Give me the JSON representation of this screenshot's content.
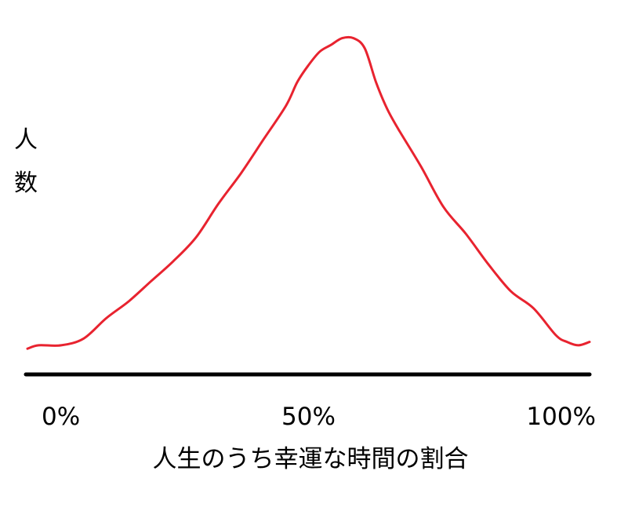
{
  "chart_data": {
    "type": "line",
    "title": "",
    "xlabel": "人生のうち幸運な時間の割合",
    "ylabel": "人数",
    "ylabel_chars": [
      "人",
      "数"
    ],
    "x_ticks": [
      {
        "value": 0,
        "label": "0%"
      },
      {
        "value": 50,
        "label": "50%"
      },
      {
        "value": 100,
        "label": "100%"
      }
    ],
    "xlim": [
      0,
      100
    ],
    "ylim": [
      0,
      100
    ],
    "y_ticks_shown": false,
    "grid": false,
    "legend": "none",
    "series": [
      {
        "color": "#e8232f",
        "x": [
          0,
          2,
          6,
          10,
          14,
          18,
          22,
          26,
          30,
          34,
          38,
          42,
          46,
          48,
          50,
          52,
          54,
          56,
          58,
          60,
          62,
          64,
          66,
          70,
          74,
          78,
          82,
          86,
          90,
          94,
          96,
          98,
          100
        ],
        "y": [
          6,
          7,
          7,
          9,
          15,
          20,
          26,
          32,
          39,
          49,
          58,
          68,
          78,
          85,
          90,
          94,
          96,
          98,
          98,
          95,
          85,
          77,
          71,
          60,
          48,
          40,
          31,
          23,
          18,
          10,
          8,
          7,
          8
        ]
      }
    ]
  },
  "style": {
    "axis_color": "#000000",
    "text_color": "#1a1a1a"
  }
}
